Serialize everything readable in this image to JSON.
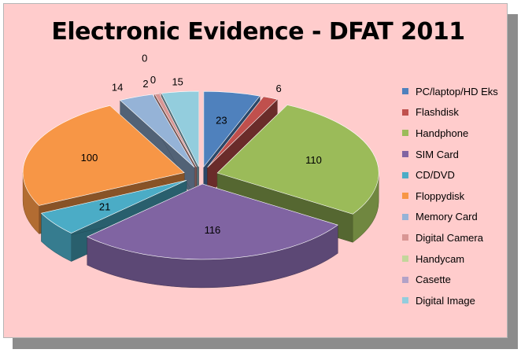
{
  "chart_data": {
    "type": "pie",
    "title": "Electronic Evidence - DFAT 2011",
    "categories": [
      "PC/laptop/HD Eks",
      "Flashdisk",
      "Handphone",
      "SIM Card",
      "CD/DVD",
      "Floppydisk",
      "Memory Card",
      "Digital Camera",
      "Handycam",
      "Casette",
      "Digital Image"
    ],
    "values": [
      23,
      6,
      110,
      116,
      21,
      100,
      14,
      2,
      0,
      0,
      15
    ],
    "colors": [
      "#4f81bd",
      "#c0504d",
      "#9bbb59",
      "#8064a2",
      "#4bacc6",
      "#f79646",
      "#95b3d7",
      "#d99694",
      "#c3d69b",
      "#b2a2c7",
      "#93cddd"
    ],
    "legend_position": "right",
    "style": "3d-exploded"
  }
}
